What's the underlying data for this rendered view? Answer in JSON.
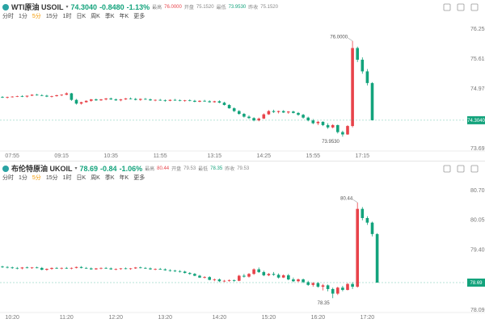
{
  "chart_data": [
    {
      "type": "candlestick",
      "title": "WTI原油 USOIL",
      "color_up": "#e8434a",
      "color_down": "#13a37c",
      "last": {
        "value": 74.304,
        "label": "74.3040"
      },
      "change": "-0.8480",
      "change_pct": "-1.13%",
      "stats": [
        {
          "label": "最高",
          "value": "76.0000",
          "color": "#e8434a"
        },
        {
          "label": "开盘",
          "value": "75.1520",
          "color": "#888888"
        },
        {
          "label": "最低",
          "value": "73.9530",
          "color": "#13a37c"
        },
        {
          "label": "昨收",
          "value": "75.1520",
          "color": "#888888"
        }
      ],
      "tabs": [
        "分时",
        "1分",
        "5分",
        "15分",
        "1时",
        "日K",
        "周K",
        "季K",
        "年K",
        "更多"
      ],
      "active_tab": 2,
      "high_label": "76.0000",
      "low_label": "73.9530",
      "ylim": [
        73.6971,
        76.2559
      ],
      "yticks": [
        76.2559,
        75.6162,
        74.9765,
        73.6971
      ],
      "categories": [
        null,
        null,
        "07:55",
        null,
        null,
        null,
        null,
        null,
        null,
        null,
        null,
        null,
        "09:15",
        null,
        null,
        null,
        null,
        null,
        null,
        null,
        null,
        null,
        "10:35",
        null,
        null,
        null,
        null,
        null,
        null,
        null,
        null,
        null,
        "11:55",
        null,
        null,
        null,
        null,
        null,
        null,
        null,
        null,
        null,
        null,
        "13:15",
        null,
        null,
        null,
        null,
        null,
        null,
        null,
        null,
        null,
        "14:25",
        null,
        null,
        null,
        null,
        null,
        null,
        null,
        null,
        null,
        "15:55",
        null,
        null,
        null,
        null,
        null,
        null,
        null,
        null,
        null,
        "17:15",
        null,
        null
      ],
      "candles": [
        [
          74.8,
          74.82,
          74.78,
          74.79
        ],
        [
          74.79,
          74.81,
          74.77,
          74.8
        ],
        [
          74.8,
          74.82,
          74.79,
          74.81
        ],
        [
          74.81,
          74.83,
          74.8,
          74.82
        ],
        [
          74.82,
          74.84,
          74.8,
          74.81
        ],
        [
          74.81,
          74.83,
          74.79,
          74.83
        ],
        [
          74.83,
          74.86,
          74.82,
          74.85
        ],
        [
          74.85,
          74.87,
          74.83,
          74.84
        ],
        [
          74.84,
          74.86,
          74.82,
          74.83
        ],
        [
          74.83,
          74.85,
          74.8,
          74.81
        ],
        [
          74.81,
          74.83,
          74.79,
          74.82
        ],
        [
          74.82,
          74.85,
          74.81,
          74.84
        ],
        [
          74.84,
          74.86,
          74.82,
          74.85
        ],
        [
          74.85,
          74.9,
          74.84,
          74.88
        ],
        [
          74.88,
          74.89,
          74.72,
          74.74
        ],
        [
          74.74,
          74.76,
          74.64,
          74.66
        ],
        [
          74.66,
          74.7,
          74.64,
          74.69
        ],
        [
          74.69,
          74.73,
          74.68,
          74.72
        ],
        [
          74.72,
          74.76,
          74.7,
          74.75
        ],
        [
          74.75,
          74.77,
          74.72,
          74.73
        ],
        [
          74.73,
          74.76,
          74.72,
          74.75
        ],
        [
          74.75,
          74.78,
          74.73,
          74.77
        ],
        [
          74.77,
          74.79,
          74.74,
          74.75
        ],
        [
          74.75,
          74.77,
          74.72,
          74.73
        ],
        [
          74.73,
          74.76,
          74.71,
          74.75
        ],
        [
          74.75,
          74.78,
          74.74,
          74.77
        ],
        [
          74.77,
          74.79,
          74.75,
          74.76
        ],
        [
          74.76,
          74.78,
          74.73,
          74.74
        ],
        [
          74.74,
          74.77,
          74.72,
          74.76
        ],
        [
          74.76,
          74.78,
          74.74,
          74.75
        ],
        [
          74.75,
          74.77,
          74.72,
          74.73
        ],
        [
          74.73,
          74.75,
          74.71,
          74.74
        ],
        [
          74.74,
          74.76,
          74.72,
          74.73
        ],
        [
          74.73,
          74.75,
          74.7,
          74.72
        ],
        [
          74.72,
          74.75,
          74.71,
          74.74
        ],
        [
          74.74,
          74.76,
          74.72,
          74.73
        ],
        [
          74.73,
          74.75,
          74.71,
          74.72
        ],
        [
          74.72,
          74.74,
          74.7,
          74.73
        ],
        [
          74.73,
          74.75,
          74.71,
          74.72
        ],
        [
          74.72,
          74.74,
          74.69,
          74.7
        ],
        [
          74.7,
          74.73,
          74.69,
          74.72
        ],
        [
          74.72,
          74.74,
          74.7,
          74.71
        ],
        [
          74.71,
          74.73,
          74.68,
          74.69
        ],
        [
          74.69,
          74.72,
          74.68,
          74.71
        ],
        [
          74.71,
          74.73,
          74.67,
          74.68
        ],
        [
          74.68,
          74.7,
          74.62,
          74.63
        ],
        [
          74.63,
          74.65,
          74.55,
          74.56
        ],
        [
          74.56,
          74.58,
          74.48,
          74.5
        ],
        [
          74.5,
          74.52,
          74.42,
          74.44
        ],
        [
          74.44,
          74.46,
          74.36,
          74.38
        ],
        [
          74.38,
          74.41,
          74.33,
          74.35
        ],
        [
          74.35,
          74.37,
          74.28,
          74.3
        ],
        [
          74.3,
          74.36,
          74.28,
          74.34
        ],
        [
          74.34,
          74.45,
          74.33,
          74.43
        ],
        [
          74.43,
          74.52,
          74.42,
          74.5
        ],
        [
          74.5,
          74.53,
          74.46,
          74.48
        ],
        [
          74.48,
          74.51,
          74.45,
          74.5
        ],
        [
          74.5,
          74.52,
          74.46,
          74.47
        ],
        [
          74.47,
          74.5,
          74.44,
          74.49
        ],
        [
          74.49,
          74.51,
          74.45,
          74.46
        ],
        [
          74.46,
          74.48,
          74.4,
          74.42
        ],
        [
          74.42,
          74.44,
          74.34,
          74.36
        ],
        [
          74.36,
          74.38,
          74.28,
          74.3
        ],
        [
          74.3,
          74.33,
          74.22,
          74.24
        ],
        [
          74.24,
          74.29,
          74.2,
          74.27
        ],
        [
          74.27,
          74.28,
          74.18,
          74.2
        ],
        [
          74.2,
          74.24,
          74.12,
          74.15
        ],
        [
          74.15,
          74.22,
          74.13,
          74.2
        ],
        [
          74.2,
          74.21,
          74.02,
          74.05
        ],
        [
          74.05,
          74.08,
          73.953,
          74.0
        ],
        [
          74.0,
          74.2,
          73.99,
          74.18
        ],
        [
          74.18,
          76.0,
          74.15,
          75.85
        ],
        [
          75.85,
          75.88,
          75.55,
          75.6
        ],
        [
          75.6,
          75.65,
          75.3,
          75.35
        ],
        [
          75.35,
          75.4,
          75.05,
          75.1
        ],
        [
          75.1,
          75.12,
          74.3,
          74.304
        ]
      ]
    },
    {
      "type": "candlestick",
      "title": "布伦特原油 UKOIL",
      "color_up": "#e8434a",
      "color_down": "#13a37c",
      "last": 78.69,
      "change": "-0.84",
      "change_pct": "-1.06%",
      "stats": [
        {
          "label": "最高",
          "value": "80.44",
          "color": "#e8434a"
        },
        {
          "label": "开盘",
          "value": "79.53",
          "color": "#888888"
        },
        {
          "label": "最低",
          "value": "78.35",
          "color": "#13a37c"
        },
        {
          "label": "昨收",
          "value": "79.53",
          "color": "#888888"
        }
      ],
      "tabs": [
        "分时",
        "1分",
        "5分",
        "15分",
        "1时",
        "日K",
        "周K",
        "季K",
        "年K",
        "更多"
      ],
      "active_tab": 2,
      "high_label": "80.44",
      "low_label": "78.35",
      "ylim": [
        78.09,
        80.7
      ],
      "yticks": [
        {
          "value": 80.7,
          "label": "80.70"
        },
        80.05,
        {
          "value": 79.4,
          "label": "79.40"
        },
        78.09
      ],
      "categories": [
        null,
        null,
        "10:20",
        null,
        null,
        null,
        null,
        null,
        null,
        null,
        null,
        null,
        null,
        "11:20",
        null,
        null,
        null,
        null,
        null,
        null,
        null,
        null,
        null,
        "12:20",
        null,
        null,
        null,
        null,
        null,
        null,
        null,
        null,
        null,
        "13:20",
        null,
        null,
        null,
        null,
        null,
        null,
        null,
        null,
        null,
        null,
        "14:20",
        null,
        null,
        null,
        null,
        null,
        null,
        null,
        null,
        null,
        "15:20",
        null,
        null,
        null,
        null,
        null,
        null,
        null,
        null,
        null,
        "16:20",
        null,
        null,
        null,
        null,
        null,
        null,
        null,
        null,
        null,
        "17:20",
        null,
        null
      ],
      "candles": [
        [
          79.04,
          79.06,
          79.01,
          79.03
        ],
        [
          79.03,
          79.05,
          79.0,
          79.02
        ],
        [
          79.02,
          79.04,
          78.99,
          79.01
        ],
        [
          79.01,
          79.03,
          78.98,
          79.0
        ],
        [
          79.0,
          79.03,
          78.98,
          79.02
        ],
        [
          79.02,
          79.04,
          79.0,
          79.01
        ],
        [
          79.01,
          79.03,
          78.99,
          79.02
        ],
        [
          79.02,
          79.04,
          79.0,
          79.01
        ],
        [
          79.01,
          79.03,
          78.96,
          78.97
        ],
        [
          78.97,
          79.0,
          78.95,
          78.99
        ],
        [
          78.99,
          79.02,
          78.97,
          79.01
        ],
        [
          79.01,
          79.03,
          78.99,
          79.0
        ],
        [
          79.0,
          79.02,
          78.98,
          79.01
        ],
        [
          79.01,
          79.03,
          78.99,
          79.0
        ],
        [
          79.0,
          79.02,
          78.98,
          79.01
        ],
        [
          79.01,
          79.04,
          79.0,
          79.03
        ],
        [
          79.03,
          79.05,
          79.0,
          79.01
        ],
        [
          79.01,
          79.03,
          78.99,
          79.0
        ],
        [
          79.0,
          79.02,
          78.97,
          78.98
        ],
        [
          78.98,
          79.01,
          78.97,
          79.0
        ],
        [
          79.0,
          79.02,
          78.98,
          79.01
        ],
        [
          79.01,
          79.03,
          78.99,
          79.0
        ],
        [
          79.0,
          79.02,
          78.97,
          78.98
        ],
        [
          78.98,
          79.0,
          78.96,
          78.99
        ],
        [
          78.99,
          79.01,
          78.97,
          79.0
        ],
        [
          79.0,
          79.02,
          78.98,
          78.99
        ],
        [
          78.99,
          79.01,
          78.97,
          79.0
        ],
        [
          79.0,
          79.03,
          78.99,
          79.02
        ],
        [
          79.02,
          79.04,
          79.0,
          79.01
        ],
        [
          79.01,
          79.03,
          78.99,
          79.0
        ],
        [
          79.0,
          79.02,
          78.97,
          78.98
        ],
        [
          78.98,
          79.0,
          78.96,
          78.99
        ],
        [
          78.99,
          79.01,
          78.97,
          78.98
        ],
        [
          78.98,
          79.0,
          78.95,
          78.96
        ],
        [
          78.96,
          78.98,
          78.93,
          78.95
        ],
        [
          78.95,
          78.97,
          78.92,
          78.94
        ],
        [
          78.94,
          78.96,
          78.91,
          78.93
        ],
        [
          78.93,
          78.95,
          78.89,
          78.9
        ],
        [
          78.9,
          78.92,
          78.86,
          78.88
        ],
        [
          78.88,
          78.9,
          78.83,
          78.84
        ],
        [
          78.84,
          78.86,
          78.79,
          78.8
        ],
        [
          78.8,
          78.83,
          78.78,
          78.81
        ],
        [
          78.81,
          78.83,
          78.74,
          78.75
        ],
        [
          78.75,
          78.78,
          78.72,
          78.76
        ],
        [
          78.76,
          78.78,
          78.7,
          78.72
        ],
        [
          78.72,
          78.75,
          78.7,
          78.73
        ],
        [
          78.73,
          78.76,
          78.71,
          78.74
        ],
        [
          78.74,
          78.76,
          78.71,
          78.73
        ],
        [
          78.73,
          78.86,
          78.72,
          78.84
        ],
        [
          78.84,
          78.88,
          78.8,
          78.82
        ],
        [
          78.82,
          78.9,
          78.8,
          78.88
        ],
        [
          78.88,
          79.0,
          78.86,
          78.98
        ],
        [
          78.98,
          79.02,
          78.9,
          78.92
        ],
        [
          78.92,
          78.95,
          78.83,
          78.85
        ],
        [
          78.85,
          78.9,
          78.83,
          78.88
        ],
        [
          78.88,
          78.92,
          78.84,
          78.86
        ],
        [
          78.86,
          78.89,
          78.78,
          78.8
        ],
        [
          78.8,
          78.87,
          78.79,
          78.85
        ],
        [
          78.85,
          78.88,
          78.74,
          78.76
        ],
        [
          78.76,
          78.8,
          78.7,
          78.72
        ],
        [
          78.72,
          78.78,
          78.7,
          78.76
        ],
        [
          78.76,
          78.78,
          78.68,
          78.7
        ],
        [
          78.7,
          78.73,
          78.62,
          78.64
        ],
        [
          78.64,
          78.7,
          78.6,
          78.68
        ],
        [
          78.68,
          78.7,
          78.58,
          78.6
        ],
        [
          78.6,
          78.66,
          78.52,
          78.63
        ],
        [
          78.63,
          78.65,
          78.5,
          78.55
        ],
        [
          78.55,
          78.58,
          78.35,
          78.45
        ],
        [
          78.45,
          78.6,
          78.42,
          78.58
        ],
        [
          78.58,
          78.62,
          78.5,
          78.53
        ],
        [
          78.53,
          78.68,
          78.52,
          78.66
        ],
        [
          78.66,
          78.7,
          78.55,
          78.6
        ],
        [
          78.6,
          80.44,
          78.58,
          80.3
        ],
        [
          80.3,
          80.34,
          80.05,
          80.1
        ],
        [
          80.1,
          80.14,
          79.95,
          80.0
        ],
        [
          80.0,
          80.02,
          79.7,
          79.75
        ],
        [
          79.75,
          79.77,
          78.69,
          78.69
        ]
      ]
    }
  ]
}
